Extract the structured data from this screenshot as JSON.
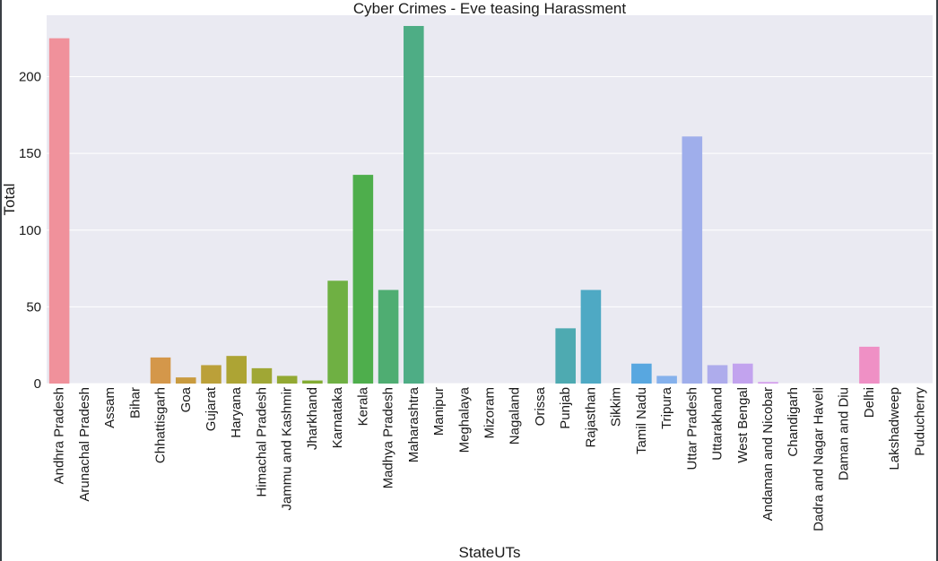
{
  "chart_data": {
    "type": "bar",
    "title": "Cyber Crimes - Eve teasing Harassment",
    "xlabel": "StateUTs",
    "ylabel": "Total",
    "ylim": [
      0,
      240
    ],
    "yticks": [
      0,
      50,
      100,
      150,
      200
    ],
    "grid": true,
    "categories": [
      "Andhra Pradesh",
      "Arunachal Pradesh",
      "Assam",
      "Bihar",
      "Chhattisgarh",
      "Goa",
      "Gujarat",
      "Haryana",
      "Himachal Pradesh",
      "Jammu and Kashmir",
      "Jharkhand",
      "Karnataka",
      "Kerala",
      "Madhya Pradesh",
      "Maharashtra",
      "Manipur",
      "Meghalaya",
      "Mizoram",
      "Nagaland",
      "Orissa",
      "Punjab",
      "Rajasthan",
      "Sikkim",
      "Tamil Nadu",
      "Tripura",
      "Uttar Pradesh",
      "Uttarakhand",
      "West Bengal",
      "Andaman and Nicobar",
      "Chandigarh",
      "Dadra and Nagar Haveli",
      "Daman and Diu",
      "Delhi",
      "Lakshadweep",
      "Puducherry"
    ],
    "values": [
      225,
      0,
      0,
      0,
      17,
      4,
      12,
      18,
      10,
      5,
      2,
      67,
      136,
      61,
      233,
      0,
      0,
      0,
      0,
      0,
      36,
      61,
      0,
      13,
      5,
      161,
      12,
      13,
      1,
      0,
      0,
      0,
      24,
      0,
      0
    ],
    "colors": [
      "#f0919b",
      "#ee9486",
      "#e59873",
      "#dd9a62",
      "#d4974a",
      "#c99b3f",
      "#bba039",
      "#ada434",
      "#a0a735",
      "#93a933",
      "#83ac32",
      "#6fb043",
      "#4eae4c",
      "#4fad72",
      "#4ead85",
      "#51ae93",
      "#52ae9e",
      "#52aea9",
      "#54adb4",
      "#55aebf",
      "#4eaab1",
      "#4ea9c4",
      "#52a9d0",
      "#58a7e0",
      "#85b1ec",
      "#9faeeb",
      "#aeacec",
      "#c2a3ee",
      "#d49eec",
      "#e29be4",
      "#ea96d8",
      "#ef94cb",
      "#ef90c5",
      "#f08fb8",
      "#f08faa"
    ]
  }
}
